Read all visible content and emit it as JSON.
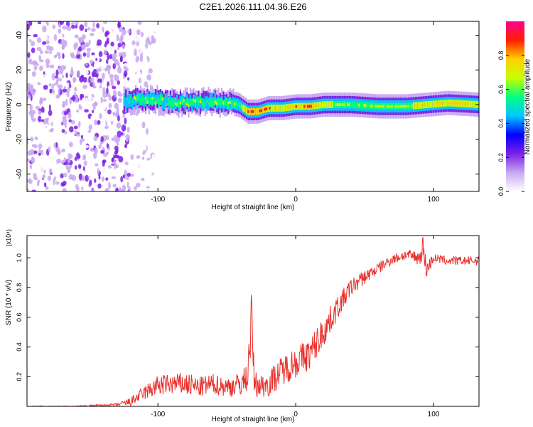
{
  "figure": {
    "title": "C2E1.2026.111.04.36.E26"
  },
  "chart_data": [
    {
      "type": "heatmap",
      "id": "spectrogram",
      "title": "C2E1.2026.111.04.36.E26",
      "xlabel": "Height of straight line (km)",
      "ylabel": "Frequency (Hz)",
      "xlim": [
        -195,
        133
      ],
      "ylim": [
        -50,
        48
      ],
      "xticks": [
        -100,
        0,
        100
      ],
      "yticks": [
        -40,
        -20,
        0,
        20,
        40
      ],
      "colorbar": {
        "label": "Normalized spectral amplitude",
        "range": [
          0,
          1
        ],
        "ticks": [
          0.0,
          0.2,
          0.4,
          0.6,
          0.8
        ],
        "tick_labels": [
          "0.0",
          "0.2",
          "0.4",
          "0.6",
          "0.8"
        ],
        "colormap": [
          "#ffffff",
          "#c8a8f0",
          "#7a1fe8",
          "#0000ff",
          "#00c8ff",
          "#00ff80",
          "#c8ff00",
          "#ffd000",
          "#ff2000",
          "#ff0090"
        ]
      },
      "ridge": {
        "x": [
          -125,
          -110,
          -95,
          -80,
          -65,
          -50,
          -42,
          -35,
          -28,
          -20,
          -10,
          0,
          10,
          20,
          40,
          60,
          80,
          95,
          110,
          133
        ],
        "freq": [
          2,
          3,
          2,
          1,
          2,
          1,
          0,
          -4,
          -4,
          -2,
          -2,
          -1,
          -1,
          0,
          0,
          -1,
          -1,
          0,
          1,
          0
        ],
        "amplitude": [
          0.5,
          0.6,
          0.55,
          0.6,
          0.55,
          0.6,
          0.55,
          0.8,
          0.85,
          0.75,
          0.7,
          0.75,
          0.8,
          0.7,
          0.6,
          0.65,
          0.65,
          0.7,
          0.75,
          0.7
        ]
      },
      "noise_region": {
        "x": [
          -195,
          -120
        ],
        "amplitude": 0.2
      }
    },
    {
      "type": "line",
      "id": "snr",
      "xlabel": "Height of straight line (km)",
      "ylabel": "SNR (10 * v/v)",
      "y_scale_note": "(x10⁴)",
      "xlim": [
        -195,
        133
      ],
      "ylim": [
        0,
        1.15
      ],
      "xticks": [
        -100,
        0,
        100
      ],
      "yticks": [
        0.2,
        0.4,
        0.6,
        0.8,
        1.0
      ],
      "series": [
        {
          "name": "SNR",
          "color": "#e8302c",
          "x": [
            -195,
            -160,
            -130,
            -120,
            -110,
            -100,
            -90,
            -80,
            -70,
            -60,
            -50,
            -40,
            -35,
            -32,
            -30,
            -25,
            -20,
            -10,
            0,
            10,
            20,
            30,
            40,
            50,
            60,
            70,
            80,
            90,
            92,
            95,
            100,
            110,
            120,
            133
          ],
          "y": [
            0.0,
            0.0,
            0.01,
            0.03,
            0.09,
            0.14,
            0.15,
            0.15,
            0.13,
            0.15,
            0.13,
            0.15,
            0.2,
            0.6,
            0.15,
            0.14,
            0.15,
            0.24,
            0.3,
            0.35,
            0.5,
            0.66,
            0.8,
            0.87,
            0.93,
            0.99,
            1.02,
            1.0,
            1.08,
            0.92,
            1.0,
            0.98,
            0.98,
            0.98
          ],
          "noise": [
            0.004,
            0.004,
            0.01,
            0.03,
            0.05,
            0.07,
            0.07,
            0.08,
            0.07,
            0.07,
            0.07,
            0.08,
            0.1,
            0.2,
            0.09,
            0.08,
            0.09,
            0.1,
            0.11,
            0.11,
            0.11,
            0.08,
            0.06,
            0.05,
            0.04,
            0.035,
            0.035,
            0.05,
            0.1,
            0.06,
            0.03,
            0.03,
            0.03,
            0.03
          ]
        }
      ]
    }
  ]
}
